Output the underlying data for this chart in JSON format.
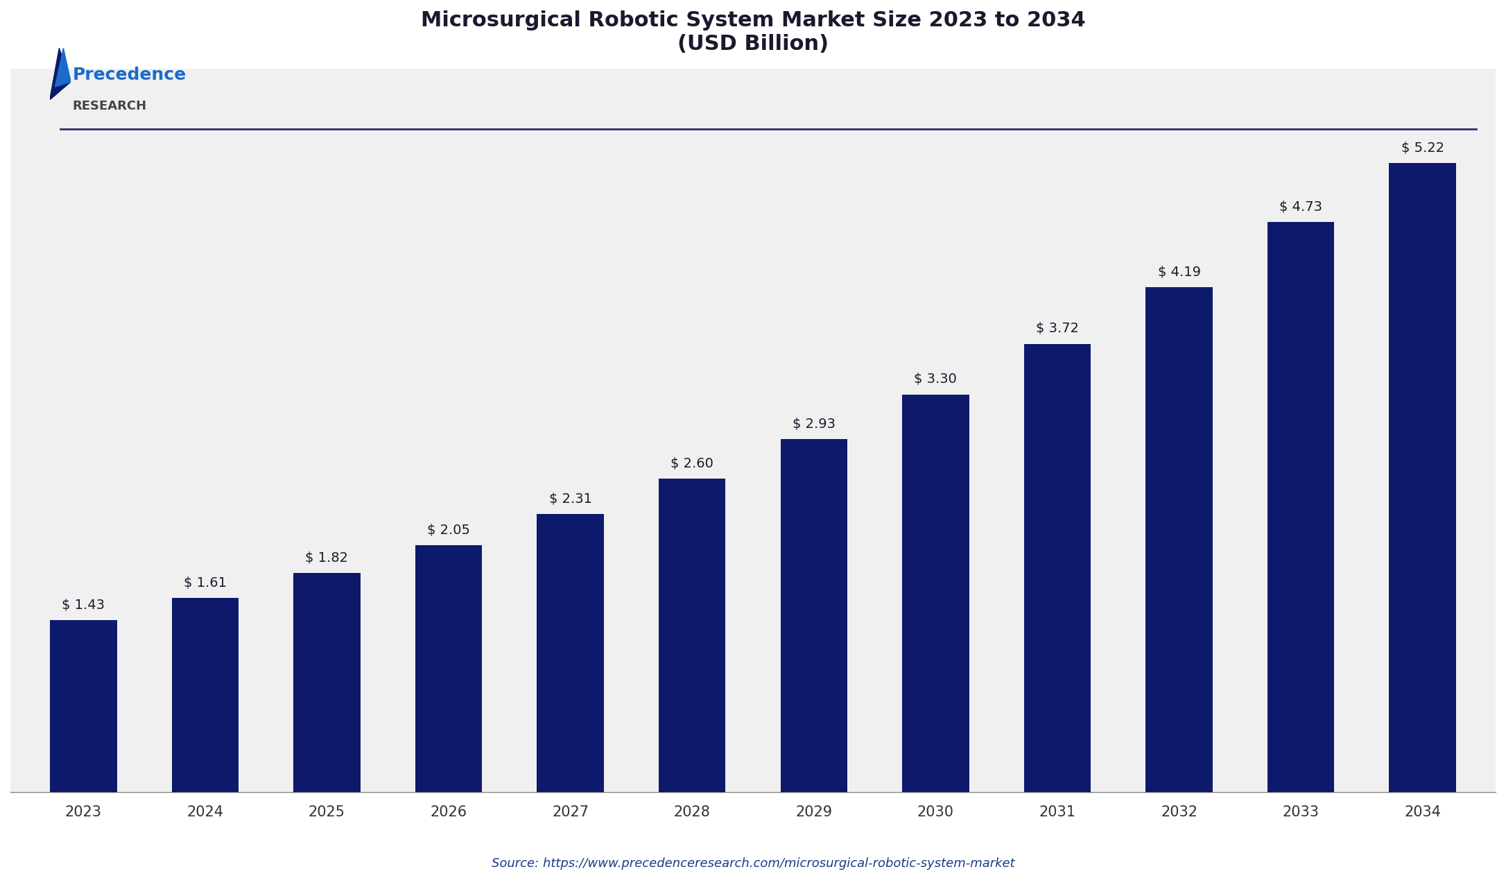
{
  "title_line1": "Microsurgical Robotic System Market Size 2023 to 2034",
  "title_line2": "(USD Billion)",
  "categories": [
    "2023",
    "2024",
    "2025",
    "2026",
    "2027",
    "2028",
    "2029",
    "2030",
    "2031",
    "2032",
    "2033",
    "2034"
  ],
  "values": [
    1.43,
    1.61,
    1.82,
    2.05,
    2.31,
    2.6,
    2.93,
    3.3,
    3.72,
    4.19,
    4.73,
    5.22
  ],
  "labels": [
    "$ 1.43",
    "$ 1.61",
    "$ 1.82",
    "$ 2.05",
    "$ 2.31",
    "$ 2.60",
    "$ 2.93",
    "$ 3.30",
    "$ 3.72",
    "$ 4.19",
    "$ 4.73",
    "$ 5.22"
  ],
  "bar_color": "#0d1a6b",
  "background_color": "#ffffff",
  "plot_bg_color": "#f0f0f0",
  "title_color": "#1a1a2e",
  "label_color": "#1a1a2e",
  "tick_color": "#333333",
  "source_text": "Source: https://www.precedenceresearch.com/microsurgical-robotic-system-market",
  "source_color": "#1a3a8a",
  "ylim": [
    0,
    6.0
  ],
  "bar_width": 0.55,
  "title_fontsize": 22,
  "label_fontsize": 14,
  "tick_fontsize": 15,
  "source_fontsize": 13,
  "logo_text_precedence": "Precedence",
  "logo_text_research": "RESEARCH",
  "divider_color": "#2d2d6b",
  "precedence_color": "#1a6bcc",
  "research_color": "#444444"
}
